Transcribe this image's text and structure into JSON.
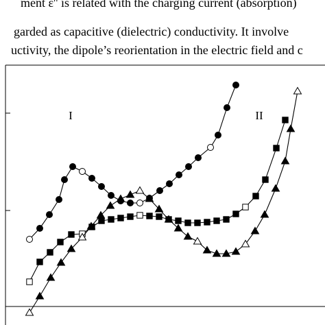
{
  "text_lines": [
    "ment ε'' is related with the charging current (absorption)",
    "garded as capacitive (dielectric) conductivity. It involve",
    "uctivity, the dipole’s reorientation in the electric field and c"
  ],
  "chart_data": {
    "type": "line",
    "color": "#000000",
    "annotations": [
      "I",
      "II"
    ],
    "xlim": [
      0,
      466
    ],
    "ylim": [
      -27,
      352
    ],
    "yticks": [
      140,
      282
    ],
    "hline": 0,
    "series": [
      {
        "marker": "circle",
        "open_markers": [
          0,
          6,
          12,
          19
        ],
        "x": [
          35,
          50,
          64,
          78,
          86,
          98,
          112,
          126,
          140,
          154,
          168,
          182,
          196,
          210,
          225,
          239,
          253,
          267,
          281,
          299,
          310,
          323,
          336
        ],
        "values": [
          98,
          114,
          134,
          156,
          185,
          204,
          197,
          187,
          175,
          162,
          154,
          151,
          151,
          158,
          169,
          179,
          192,
          204,
          217,
          232,
          250,
          290,
          323
        ]
      },
      {
        "marker": "square",
        "open_markers": [
          0,
          5,
          11,
          22
        ],
        "x": [
          35,
          50,
          65,
          80,
          96,
          112,
          126,
          140,
          154,
          168,
          182,
          196,
          210,
          224,
          238,
          252,
          266,
          280,
          294,
          308,
          322,
          336,
          350,
          365,
          379,
          395,
          408
        ],
        "values": [
          36,
          65,
          79,
          94,
          105,
          106,
          116,
          125,
          127,
          129,
          131,
          133,
          132,
          131,
          127,
          125,
          122,
          122,
          123,
          125,
          127,
          135,
          145,
          161,
          185,
          231,
          272
        ]
      },
      {
        "marker": "triangle",
        "open_markers": [
          0,
          5,
          11,
          17,
          22,
          28
        ],
        "x": [
          35,
          50,
          66,
          81,
          96,
          112,
          125,
          139,
          153,
          168,
          182,
          196,
          210,
          224,
          238,
          252,
          266,
          280,
          294,
          308,
          322,
          336,
          350,
          364,
          378,
          394,
          408,
          416,
          426
        ],
        "values": [
          -9,
          15,
          42,
          64,
          84,
          101,
          117,
          133,
          147,
          157,
          163,
          169,
          157,
          142,
          127,
          114,
          102,
          95,
          82,
          77,
          77,
          80,
          91,
          110,
          134,
          172,
          212,
          259,
          314
        ]
      }
    ]
  }
}
